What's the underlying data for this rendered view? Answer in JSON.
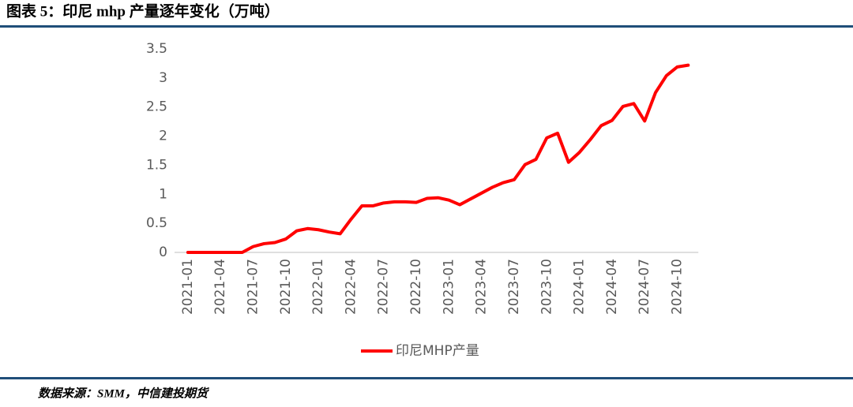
{
  "chart_data": {
    "type": "line",
    "title": "图表 5：印尼 mhp 产量逐年变化（万吨）",
    "source": "数据来源：SMM，中信建投期货",
    "categories": [
      "2021-01",
      null,
      null,
      "2021-04",
      null,
      null,
      "2021-07",
      null,
      null,
      "2021-10",
      null,
      null,
      "2022-01",
      null,
      null,
      "2022-04",
      null,
      null,
      "2022-07",
      null,
      null,
      "2022-10",
      null,
      null,
      "2023-01",
      null,
      null,
      "2023-04",
      null,
      null,
      "2023-07",
      null,
      null,
      "2023-10",
      null,
      null,
      "2024-01",
      null,
      null,
      "2024-04",
      null,
      null,
      "2024-07",
      null,
      null,
      "2024-10",
      null
    ],
    "series": [
      {
        "name": "印尼MHP产量",
        "color": "#ff0000",
        "values": [
          0,
          0,
          0,
          0,
          0,
          0,
          0.1,
          0.15,
          0.17,
          0.23,
          0.37,
          0.41,
          0.39,
          0.35,
          0.32,
          0.57,
          0.8,
          0.8,
          0.85,
          0.87,
          0.87,
          0.86,
          0.93,
          0.94,
          0.9,
          0.82,
          0.92,
          1.02,
          1.12,
          1.2,
          1.25,
          1.51,
          1.6,
          1.97,
          2.05,
          1.55,
          1.72,
          1.94,
          2.18,
          2.27,
          2.51,
          2.56,
          2.26,
          2.75,
          3.04,
          3.19,
          3.22
        ]
      }
    ],
    "ylim": [
      0,
      3.5
    ],
    "yticks": [
      0,
      0.5,
      1,
      1.5,
      2,
      2.5,
      3,
      3.5
    ],
    "grid": false,
    "legend": "bottom"
  }
}
